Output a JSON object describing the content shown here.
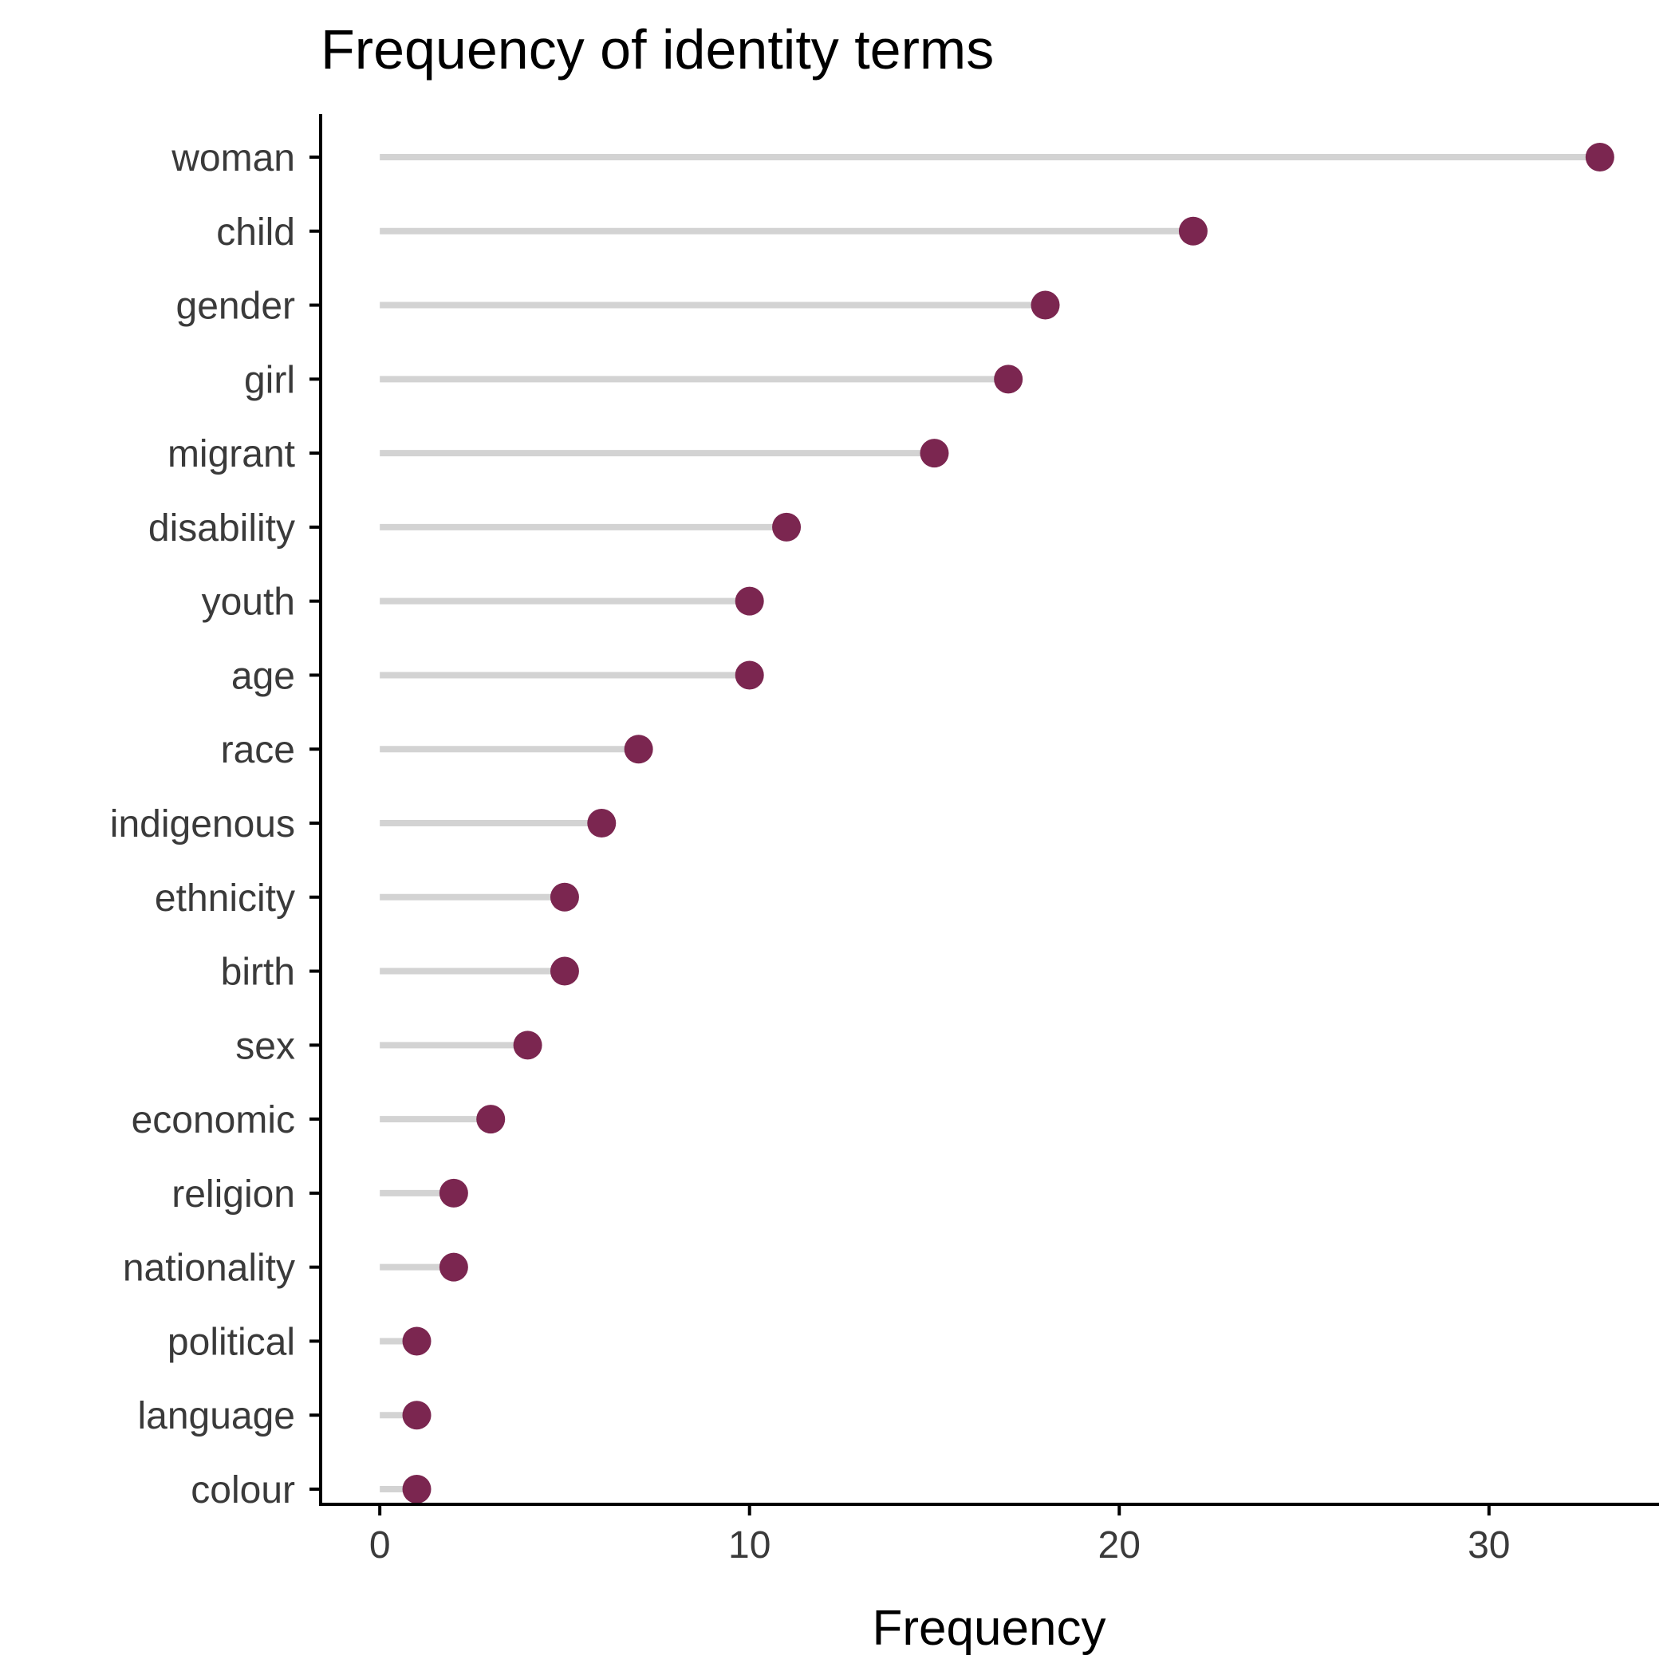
{
  "chart_data": {
    "type": "lollipop",
    "title": "Frequency of identity terms",
    "xlabel": "Frequency",
    "ylabel": "",
    "xlim": [
      -1.6,
      34.6
    ],
    "xticks": [
      0,
      10,
      20,
      30
    ],
    "grid": false,
    "colors": {
      "point": "#7b2650",
      "stem": "#d3d3d3",
      "axis": "#000000"
    },
    "categories": [
      "woman",
      "child",
      "gender",
      "girl",
      "migrant",
      "disability",
      "youth",
      "age",
      "race",
      "indigenous",
      "ethnicity",
      "birth",
      "sex",
      "economic",
      "religion",
      "nationality",
      "political",
      "language",
      "colour"
    ],
    "values": [
      33,
      22,
      18,
      17,
      15,
      11,
      10,
      10,
      7,
      6,
      5,
      5,
      4,
      3,
      2,
      2,
      1,
      1,
      1
    ]
  }
}
